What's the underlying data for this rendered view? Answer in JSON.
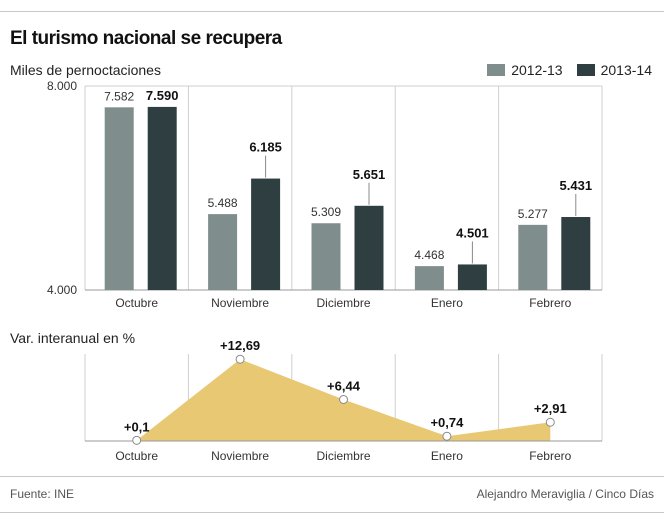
{
  "header": {
    "title": "El turismo nacional se recupera"
  },
  "footer": {
    "source": "Fuente: INE",
    "credit": "Alejandro Meraviglia / Cinco Días"
  },
  "colors": {
    "series1": "#7f8d8d",
    "series2": "#2f3f41",
    "area": "#e9c874",
    "grid": "#cfcfcf",
    "axis": "#999999"
  },
  "chart_data": [
    {
      "type": "bar",
      "subtitle": "Miles de pernoctaciones",
      "categories": [
        "Octubre",
        "Noviembre",
        "Diciembre",
        "Enero",
        "Febrero"
      ],
      "ylim": [
        4000,
        8000
      ],
      "ytick_labels": [
        "8.000",
        "4.000"
      ],
      "legend": "top-right",
      "series": [
        {
          "name": "2012-13",
          "values": [
            7582,
            5488,
            5309,
            4468,
            5277
          ],
          "labels": [
            "7.582",
            "5.488",
            "5.309",
            "4.468",
            "5.277"
          ]
        },
        {
          "name": "2013-14",
          "values": [
            7590,
            6185,
            5651,
            4501,
            5431
          ],
          "labels": [
            "7.590",
            "6.185",
            "5.651",
            "4.501",
            "5.431"
          ]
        }
      ]
    },
    {
      "type": "area",
      "subtitle": "Var. interanual en %",
      "categories": [
        "Octubre",
        "Noviembre",
        "Diciembre",
        "Enero",
        "Febrero"
      ],
      "values": [
        0.1,
        12.69,
        6.44,
        0.74,
        2.91
      ],
      "labels": [
        "+0,1",
        "+12,69",
        "+6,44",
        "+0,74",
        "+2,91"
      ],
      "ylim": [
        0,
        13.5
      ]
    }
  ]
}
